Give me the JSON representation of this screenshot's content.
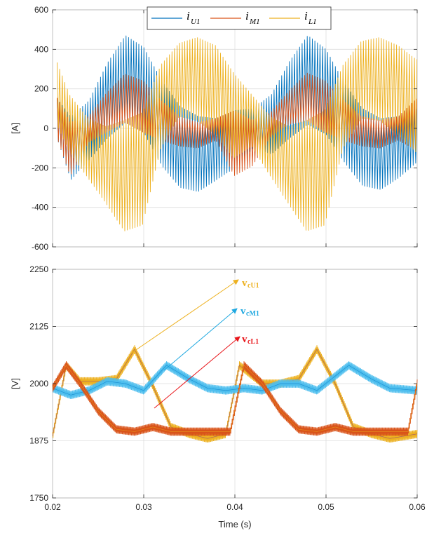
{
  "chart_data": [
    {
      "type": "line",
      "title": "",
      "xlabel": "",
      "ylabel": "[A]",
      "xlim": [
        0.02,
        0.06
      ],
      "ylim": [
        -600,
        600
      ],
      "yticks": [
        "600",
        "400",
        "200",
        "0",
        "-200",
        "-400",
        "-600"
      ],
      "grid": true,
      "legend": {
        "placement": "top-center",
        "entries": [
          {
            "base": "i",
            "sub": "U1",
            "color": "#0072BD"
          },
          {
            "base": "i",
            "sub": "M1",
            "color": "#D95319"
          },
          {
            "base": "i",
            "sub": "L1",
            "color": "#EDB120"
          }
        ]
      },
      "series": [
        {
          "name": "iU1",
          "color": "#0072BD",
          "envelope_x": [
            0.0205,
            0.022,
            0.024,
            0.026,
            0.028,
            0.03,
            0.032,
            0.034,
            0.036,
            0.038,
            0.04,
            0.042,
            0.044,
            0.046,
            0.048,
            0.05,
            0.052,
            0.054,
            0.056,
            0.058,
            0.06
          ],
          "envelope_upper": [
            150,
            60,
            140,
            330,
            470,
            410,
            240,
            110,
            60,
            50,
            90,
            100,
            170,
            340,
            470,
            400,
            230,
            100,
            50,
            60,
            100
          ],
          "envelope_lower": [
            -50,
            -260,
            -160,
            -50,
            30,
            -20,
            -190,
            -300,
            -320,
            -260,
            -200,
            -100,
            -130,
            -50,
            20,
            -30,
            -170,
            -290,
            -310,
            -250,
            -170
          ]
        },
        {
          "name": "iM1",
          "color": "#D95319",
          "envelope_x": [
            0.0205,
            0.022,
            0.024,
            0.026,
            0.028,
            0.03,
            0.032,
            0.034,
            0.036,
            0.038,
            0.04,
            0.042,
            0.044,
            0.046,
            0.048,
            0.05,
            0.052,
            0.054,
            0.056,
            0.058,
            0.06
          ],
          "envelope_upper": [
            160,
            30,
            60,
            180,
            275,
            240,
            140,
            60,
            30,
            50,
            90,
            40,
            80,
            190,
            280,
            240,
            140,
            60,
            40,
            60,
            150
          ],
          "envelope_lower": [
            -40,
            -240,
            -70,
            -20,
            30,
            -20,
            -60,
            -90,
            -100,
            -60,
            -240,
            -190,
            -40,
            20,
            40,
            -20,
            -60,
            -90,
            -100,
            -60,
            -110
          ]
        },
        {
          "name": "iL1",
          "color": "#EDB120",
          "envelope_x": [
            0.0205,
            0.022,
            0.024,
            0.026,
            0.028,
            0.03,
            0.032,
            0.034,
            0.036,
            0.038,
            0.04,
            0.042,
            0.044,
            0.046,
            0.048,
            0.05,
            0.052,
            0.054,
            0.056,
            0.058,
            0.06
          ],
          "envelope_upper": [
            350,
            170,
            50,
            10,
            40,
            80,
            320,
            430,
            460,
            420,
            280,
            170,
            60,
            10,
            40,
            90,
            320,
            440,
            460,
            420,
            350
          ],
          "envelope_lower": [
            30,
            -120,
            -250,
            -380,
            -520,
            -490,
            -100,
            60,
            40,
            -30,
            -150,
            -90,
            -240,
            -380,
            -520,
            -490,
            -100,
            50,
            40,
            -30,
            -120
          ]
        }
      ]
    },
    {
      "type": "line",
      "title": "",
      "xlabel": "Time (s)",
      "ylabel": "[V]",
      "xlim": [
        0.02,
        0.06
      ],
      "ylim": [
        1750,
        2250
      ],
      "yticks": [
        "2250",
        "2125",
        "2000",
        "1875",
        "1750"
      ],
      "xticks": [
        "0.02",
        "0.03",
        "0.04",
        "0.05",
        "0.06"
      ],
      "grid": true,
      "annotations": [
        {
          "text": "v",
          "sub": "cU1",
          "color": "#EDB120"
        },
        {
          "text": "v",
          "sub": "cM1",
          "color": "#1FA8E0"
        },
        {
          "text": "v",
          "sub": "cL1",
          "color": "#E8161B"
        }
      ],
      "series": [
        {
          "name": "vcU1",
          "color": "#EDB120",
          "x": [
            0.02,
            0.0215,
            0.023,
            0.025,
            0.027,
            0.029,
            0.031,
            0.033,
            0.035,
            0.037,
            0.039,
            0.0405,
            0.043,
            0.045,
            0.047,
            0.049,
            0.051,
            0.053,
            0.055,
            0.057,
            0.06
          ],
          "y": [
            1885,
            2040,
            2005,
            2005,
            2010,
            2075,
            1995,
            1905,
            1890,
            1880,
            1890,
            2040,
            2000,
            2000,
            2010,
            2075,
            2000,
            1905,
            1890,
            1880,
            1890
          ]
        },
        {
          "name": "vcM1",
          "color": "#4DBEEE",
          "x": [
            0.02,
            0.022,
            0.024,
            0.026,
            0.028,
            0.03,
            0.0325,
            0.035,
            0.037,
            0.039,
            0.041,
            0.043,
            0.045,
            0.047,
            0.049,
            0.0525,
            0.055,
            0.057,
            0.06
          ],
          "y": [
            1990,
            1975,
            1985,
            2005,
            2000,
            1985,
            2040,
            2010,
            1990,
            1985,
            1990,
            1985,
            2000,
            2000,
            1985,
            2040,
            2010,
            1990,
            1985
          ]
        },
        {
          "name": "vcL1",
          "color": "#D95319",
          "x": [
            0.02,
            0.0215,
            0.023,
            0.025,
            0.027,
            0.029,
            0.031,
            0.033,
            0.035,
            0.037,
            0.0395,
            0.041,
            0.043,
            0.045,
            0.047,
            0.049,
            0.051,
            0.053,
            0.055,
            0.057,
            0.059,
            0.06
          ],
          "y": [
            1990,
            2040,
            2000,
            1940,
            1900,
            1895,
            1905,
            1895,
            1895,
            1895,
            1895,
            2040,
            2000,
            1940,
            1900,
            1895,
            1905,
            1895,
            1895,
            1895,
            1895,
            2000
          ]
        }
      ]
    }
  ]
}
